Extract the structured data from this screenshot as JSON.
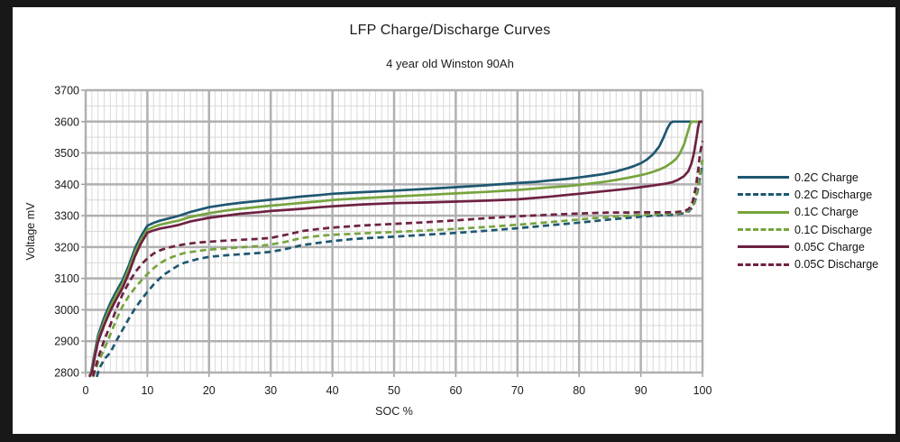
{
  "colors": {
    "page_frame": "#181818",
    "canvas": "#ffffff",
    "grid_major": "#b0b0b0",
    "grid_minor": "#d9d9d9",
    "tick": "#9a9a9a",
    "text": "#1b1b1b",
    "series_blue": "#1e5770",
    "series_green": "#77a43e",
    "series_maroon": "#6e2142"
  },
  "chart_data": {
    "type": "line",
    "title": "LFP Charge/Discharge Curves",
    "subtitle": "4 year old Winston 90Ah",
    "xlabel": "SOC %",
    "ylabel": "Voltage mV",
    "xlim": [
      0,
      100
    ],
    "ylim": [
      2800,
      3700
    ],
    "x_major": 10,
    "x_minor": 1,
    "y_major": 100,
    "y_minor": 50,
    "x_ticks": [
      0,
      10,
      20,
      30,
      40,
      50,
      60,
      70,
      80,
      90,
      100
    ],
    "y_ticks": [
      2800,
      2900,
      3000,
      3100,
      3200,
      3300,
      3400,
      3500,
      3600,
      3700
    ],
    "grid": "major+minor",
    "legend_position": "right",
    "series": [
      {
        "name": "0.2C Charge",
        "color": "#1e5770",
        "dashed": false,
        "points": [
          [
            0.7,
            2788
          ],
          [
            1,
            2812
          ],
          [
            1.5,
            2868
          ],
          [
            2,
            2918
          ],
          [
            3,
            2975
          ],
          [
            4,
            3022
          ],
          [
            5,
            3060
          ],
          [
            6,
            3095
          ],
          [
            7,
            3142
          ],
          [
            8,
            3196
          ],
          [
            9,
            3236
          ],
          [
            10,
            3268
          ],
          [
            11,
            3277
          ],
          [
            12,
            3284
          ],
          [
            14,
            3294
          ],
          [
            15,
            3299
          ],
          [
            17,
            3312
          ],
          [
            20,
            3327
          ],
          [
            23,
            3336
          ],
          [
            25,
            3341
          ],
          [
            28,
            3347
          ],
          [
            30,
            3351
          ],
          [
            33,
            3357
          ],
          [
            35,
            3361
          ],
          [
            38,
            3366
          ],
          [
            40,
            3370
          ],
          [
            45,
            3375
          ],
          [
            50,
            3380
          ],
          [
            55,
            3385
          ],
          [
            60,
            3391
          ],
          [
            65,
            3397
          ],
          [
            70,
            3404
          ],
          [
            73,
            3408
          ],
          [
            75,
            3412
          ],
          [
            78,
            3417
          ],
          [
            80,
            3422
          ],
          [
            82,
            3427
          ],
          [
            84,
            3433
          ],
          [
            86,
            3441
          ],
          [
            88,
            3452
          ],
          [
            89,
            3459
          ],
          [
            90,
            3467
          ],
          [
            91,
            3479
          ],
          [
            92,
            3496
          ],
          [
            93,
            3521
          ],
          [
            93.7,
            3550
          ],
          [
            94.3,
            3578
          ],
          [
            94.8,
            3595
          ],
          [
            95.2,
            3600
          ],
          [
            100,
            3600
          ]
        ]
      },
      {
        "name": "0.2C Discharge",
        "color": "#1e5770",
        "dashed": true,
        "points": [
          [
            1.8,
            2786
          ],
          [
            2.2,
            2812
          ],
          [
            3,
            2842
          ],
          [
            4,
            2864
          ],
          [
            5,
            2902
          ],
          [
            6,
            2937
          ],
          [
            7,
            2972
          ],
          [
            8,
            3004
          ],
          [
            9,
            3032
          ],
          [
            10,
            3057
          ],
          [
            11,
            3080
          ],
          [
            12,
            3100
          ],
          [
            13,
            3116
          ],
          [
            14,
            3129
          ],
          [
            15,
            3141
          ],
          [
            16,
            3150
          ],
          [
            18,
            3161
          ],
          [
            20,
            3169
          ],
          [
            23,
            3174
          ],
          [
            25,
            3177
          ],
          [
            28,
            3181
          ],
          [
            30,
            3185
          ],
          [
            32,
            3192
          ],
          [
            34,
            3201
          ],
          [
            35,
            3206
          ],
          [
            38,
            3214
          ],
          [
            40,
            3219
          ],
          [
            43,
            3225
          ],
          [
            45,
            3228
          ],
          [
            50,
            3233
          ],
          [
            55,
            3239
          ],
          [
            60,
            3245
          ],
          [
            65,
            3252
          ],
          [
            70,
            3260
          ],
          [
            75,
            3269
          ],
          [
            80,
            3278
          ],
          [
            83,
            3284
          ],
          [
            85,
            3288
          ],
          [
            88,
            3293
          ],
          [
            90,
            3297
          ],
          [
            92,
            3300
          ],
          [
            94,
            3302
          ],
          [
            95,
            3303
          ],
          [
            96,
            3305
          ],
          [
            97,
            3308
          ],
          [
            97.8,
            3314
          ],
          [
            98.5,
            3330
          ],
          [
            99,
            3360
          ],
          [
            99.4,
            3398
          ],
          [
            99.7,
            3435
          ],
          [
            100,
            3465
          ]
        ]
      },
      {
        "name": "0.1C Charge",
        "color": "#77a43e",
        "dashed": false,
        "points": [
          [
            0.6,
            2788
          ],
          [
            1,
            2806
          ],
          [
            1.5,
            2860
          ],
          [
            2,
            2908
          ],
          [
            3,
            2963
          ],
          [
            4,
            3010
          ],
          [
            5,
            3048
          ],
          [
            6,
            3083
          ],
          [
            7,
            3130
          ],
          [
            8,
            3184
          ],
          [
            9,
            3224
          ],
          [
            10,
            3255
          ],
          [
            11,
            3264
          ],
          [
            12,
            3271
          ],
          [
            14,
            3280
          ],
          [
            15,
            3284
          ],
          [
            17,
            3296
          ],
          [
            20,
            3308
          ],
          [
            23,
            3317
          ],
          [
            25,
            3322
          ],
          [
            28,
            3328
          ],
          [
            30,
            3332
          ],
          [
            33,
            3337
          ],
          [
            35,
            3341
          ],
          [
            38,
            3346
          ],
          [
            40,
            3350
          ],
          [
            45,
            3356
          ],
          [
            50,
            3361
          ],
          [
            55,
            3366
          ],
          [
            60,
            3371
          ],
          [
            65,
            3376
          ],
          [
            70,
            3382
          ],
          [
            75,
            3390
          ],
          [
            78,
            3394
          ],
          [
            80,
            3398
          ],
          [
            82,
            3403
          ],
          [
            84,
            3408
          ],
          [
            86,
            3414
          ],
          [
            88,
            3421
          ],
          [
            90,
            3429
          ],
          [
            91,
            3434
          ],
          [
            92,
            3440
          ],
          [
            93,
            3447
          ],
          [
            94,
            3456
          ],
          [
            95,
            3469
          ],
          [
            95.7,
            3481
          ],
          [
            96.3,
            3497
          ],
          [
            97,
            3527
          ],
          [
            97.5,
            3560
          ],
          [
            98,
            3592
          ],
          [
            98.2,
            3600
          ],
          [
            100,
            3600
          ]
        ]
      },
      {
        "name": "0.1C Discharge",
        "color": "#77a43e",
        "dashed": true,
        "points": [
          [
            1.2,
            2786
          ],
          [
            2,
            2832
          ],
          [
            3,
            2874
          ],
          [
            4,
            2922
          ],
          [
            5,
            2970
          ],
          [
            6,
            3012
          ],
          [
            7,
            3044
          ],
          [
            8,
            3070
          ],
          [
            9,
            3093
          ],
          [
            10,
            3114
          ],
          [
            11,
            3132
          ],
          [
            12,
            3148
          ],
          [
            13,
            3159
          ],
          [
            14,
            3168
          ],
          [
            15,
            3175
          ],
          [
            16,
            3181
          ],
          [
            18,
            3187
          ],
          [
            20,
            3192
          ],
          [
            23,
            3196
          ],
          [
            25,
            3199
          ],
          [
            28,
            3203
          ],
          [
            30,
            3208
          ],
          [
            32,
            3215
          ],
          [
            34,
            3224
          ],
          [
            35,
            3229
          ],
          [
            38,
            3236
          ],
          [
            40,
            3239
          ],
          [
            43,
            3242
          ],
          [
            45,
            3244
          ],
          [
            50,
            3248
          ],
          [
            55,
            3253
          ],
          [
            60,
            3258
          ],
          [
            65,
            3264
          ],
          [
            70,
            3271
          ],
          [
            75,
            3279
          ],
          [
            80,
            3288
          ],
          [
            83,
            3293
          ],
          [
            85,
            3296
          ],
          [
            88,
            3300
          ],
          [
            90,
            3303
          ],
          [
            92,
            3305
          ],
          [
            94,
            3306
          ],
          [
            95,
            3307
          ],
          [
            96,
            3308
          ],
          [
            97,
            3310
          ],
          [
            97.8,
            3317
          ],
          [
            98.5,
            3335
          ],
          [
            99,
            3368
          ],
          [
            99.4,
            3408
          ],
          [
            99.7,
            3448
          ],
          [
            100,
            3478
          ]
        ]
      },
      {
        "name": "0.05C Charge",
        "color": "#6e2142",
        "dashed": false,
        "points": [
          [
            0.6,
            2786
          ],
          [
            1,
            2800
          ],
          [
            1.5,
            2852
          ],
          [
            2,
            2898
          ],
          [
            3,
            2951
          ],
          [
            4,
            2997
          ],
          [
            5,
            3035
          ],
          [
            6,
            3070
          ],
          [
            7,
            3117
          ],
          [
            8,
            3171
          ],
          [
            9,
            3213
          ],
          [
            10,
            3246
          ],
          [
            11,
            3253
          ],
          [
            12,
            3259
          ],
          [
            14,
            3266
          ],
          [
            15,
            3270
          ],
          [
            17,
            3282
          ],
          [
            20,
            3293
          ],
          [
            23,
            3301
          ],
          [
            25,
            3306
          ],
          [
            28,
            3311
          ],
          [
            30,
            3315
          ],
          [
            33,
            3319
          ],
          [
            35,
            3322
          ],
          [
            38,
            3327
          ],
          [
            40,
            3330
          ],
          [
            45,
            3336
          ],
          [
            50,
            3340
          ],
          [
            55,
            3342
          ],
          [
            60,
            3345
          ],
          [
            65,
            3348
          ],
          [
            70,
            3352
          ],
          [
            75,
            3360
          ],
          [
            80,
            3370
          ],
          [
            83,
            3376
          ],
          [
            85,
            3380
          ],
          [
            88,
            3386
          ],
          [
            90,
            3391
          ],
          [
            92,
            3396
          ],
          [
            94,
            3402
          ],
          [
            95,
            3406
          ],
          [
            96,
            3414
          ],
          [
            97,
            3426
          ],
          [
            97.7,
            3442
          ],
          [
            98.2,
            3466
          ],
          [
            98.6,
            3498
          ],
          [
            99,
            3545
          ],
          [
            99.3,
            3582
          ],
          [
            99.5,
            3600
          ],
          [
            100,
            3600
          ]
        ]
      },
      {
        "name": "0.05C Discharge",
        "color": "#6e2142",
        "dashed": true,
        "points": [
          [
            1.2,
            2788
          ],
          [
            2,
            2846
          ],
          [
            3,
            2902
          ],
          [
            4,
            2952
          ],
          [
            5,
            3004
          ],
          [
            6,
            3050
          ],
          [
            7,
            3087
          ],
          [
            8,
            3119
          ],
          [
            9,
            3144
          ],
          [
            10,
            3164
          ],
          [
            11,
            3179
          ],
          [
            12,
            3189
          ],
          [
            13,
            3196
          ],
          [
            14,
            3201
          ],
          [
            15,
            3205
          ],
          [
            16,
            3209
          ],
          [
            18,
            3214
          ],
          [
            20,
            3217
          ],
          [
            23,
            3221
          ],
          [
            25,
            3223
          ],
          [
            28,
            3226
          ],
          [
            30,
            3229
          ],
          [
            32,
            3237
          ],
          [
            34,
            3246
          ],
          [
            35,
            3251
          ],
          [
            38,
            3258
          ],
          [
            40,
            3262
          ],
          [
            43,
            3266
          ],
          [
            45,
            3269
          ],
          [
            50,
            3274
          ],
          [
            55,
            3279
          ],
          [
            60,
            3285
          ],
          [
            65,
            3292
          ],
          [
            70,
            3298
          ],
          [
            75,
            3303
          ],
          [
            80,
            3307
          ],
          [
            83,
            3309
          ],
          [
            85,
            3310
          ],
          [
            88,
            3310
          ],
          [
            90,
            3311
          ],
          [
            93,
            3311
          ],
          [
            95,
            3311
          ],
          [
            96,
            3312
          ],
          [
            97,
            3314
          ],
          [
            97.8,
            3322
          ],
          [
            98.4,
            3345
          ],
          [
            98.9,
            3390
          ],
          [
            99.3,
            3445
          ],
          [
            99.6,
            3500
          ],
          [
            100,
            3538
          ]
        ]
      }
    ]
  }
}
